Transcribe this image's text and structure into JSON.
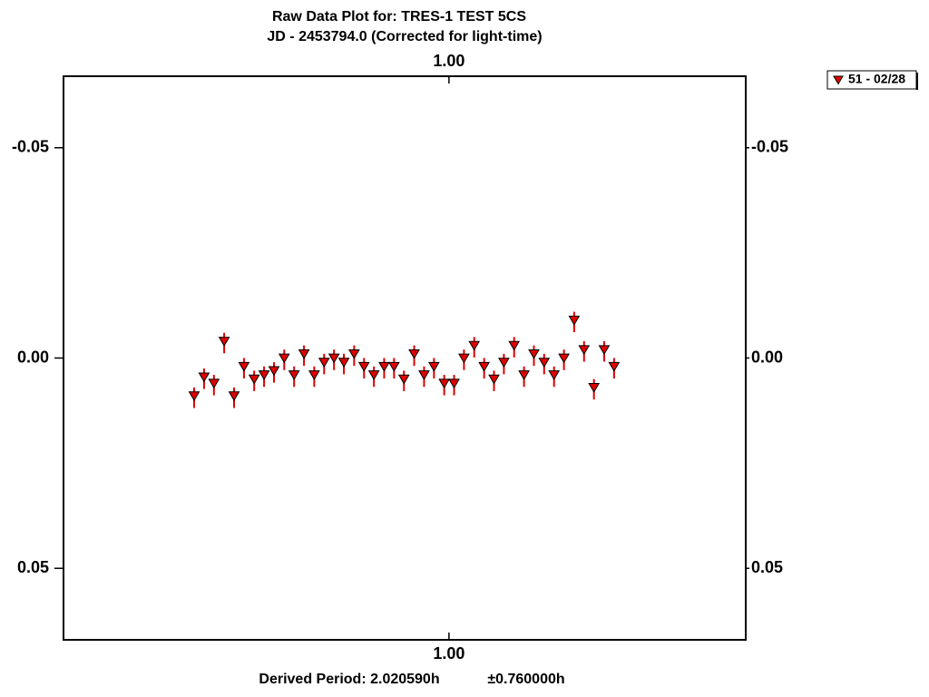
{
  "chart_data": {
    "type": "scatter",
    "title": "Raw Data Plot for: TRES-1 TEST 5CS",
    "subtitle": "JD - 2453794.0   (Corrected for light-time)",
    "footer": {
      "period": "Derived Period: 2.020590h",
      "error": "±0.760000h"
    },
    "x": [
      0.9253,
      0.9282,
      0.9311,
      0.9341,
      0.937,
      0.9399,
      0.9429,
      0.9458,
      0.9487,
      0.9517,
      0.9546,
      0.9575,
      0.9605,
      0.9634,
      0.9663,
      0.9692,
      0.9722,
      0.9751,
      0.978,
      0.981,
      0.9839,
      0.9868,
      0.9898,
      0.9927,
      0.9956,
      0.9986,
      1.0015,
      1.0044,
      1.0074,
      1.0103,
      1.0132,
      1.0161,
      1.0191,
      1.022,
      1.0249,
      1.0279,
      1.0308,
      1.0337,
      1.0367,
      1.0396,
      1.0425,
      1.0455,
      1.0484
    ],
    "series": [
      {
        "name": "51 - 02/28",
        "color": "#e00000",
        "values": [
          0.009,
          0.0045,
          0.006,
          -0.004,
          0.009,
          0.002,
          0.005,
          0.004,
          0.003,
          0.0,
          0.004,
          -0.001,
          0.004,
          0.001,
          0.0,
          0.001,
          -0.001,
          0.002,
          0.004,
          0.002,
          0.002,
          0.005,
          -0.001,
          0.004,
          0.002,
          0.006,
          0.006,
          0.0,
          -0.003,
          0.002,
          0.005,
          0.001,
          -0.003,
          0.004,
          -0.001,
          0.001,
          0.004,
          0.0,
          -0.009,
          -0.002,
          0.007,
          -0.002,
          0.002
        ],
        "errors": [
          0.002,
          0.002,
          0.002,
          0.002,
          0.002,
          0.002,
          0.002,
          0.002,
          0.002,
          0.002,
          0.002,
          0.002,
          0.002,
          0.002,
          0.002,
          0.002,
          0.002,
          0.002,
          0.002,
          0.002,
          0.002,
          0.002,
          0.002,
          0.002,
          0.002,
          0.002,
          0.002,
          0.002,
          0.002,
          0.002,
          0.002,
          0.002,
          0.002,
          0.002,
          0.002,
          0.002,
          0.002,
          0.002,
          0.002,
          0.002,
          0.002,
          0.002,
          0.002
        ]
      }
    ],
    "xlim": [
      0.887,
      1.087
    ],
    "xticks": [
      {
        "value": 1,
        "label": "1.00"
      }
    ],
    "ylim": [
      -0.067,
      0.067
    ],
    "y_inverted": true,
    "yticks": [
      -0.05,
      {
        "value": 0,
        "label": "0.00"
      },
      0.05
    ],
    "legend": "top-right"
  }
}
